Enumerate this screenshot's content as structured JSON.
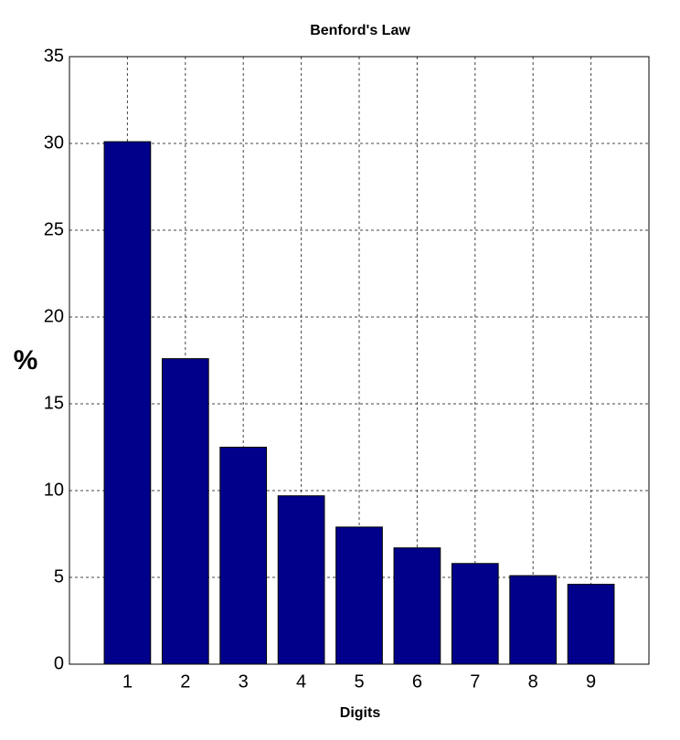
{
  "chart_data": {
    "type": "bar",
    "title": "Benford's Law",
    "xlabel": "Digits",
    "ylabel": "%",
    "x": [
      1,
      2,
      3,
      4,
      5,
      6,
      7,
      8,
      9
    ],
    "values": [
      30.1,
      17.6,
      12.5,
      9.7,
      7.9,
      6.7,
      5.8,
      5.1,
      4.6
    ],
    "color": "#00008b",
    "xlim": [
      0,
      10
    ],
    "xticks": [
      1,
      2,
      3,
      4,
      5,
      6,
      7,
      8,
      9
    ],
    "ylim": [
      0,
      35
    ],
    "yticks": [
      0,
      5,
      10,
      15,
      20,
      25,
      30,
      35
    ],
    "grid": true
  }
}
